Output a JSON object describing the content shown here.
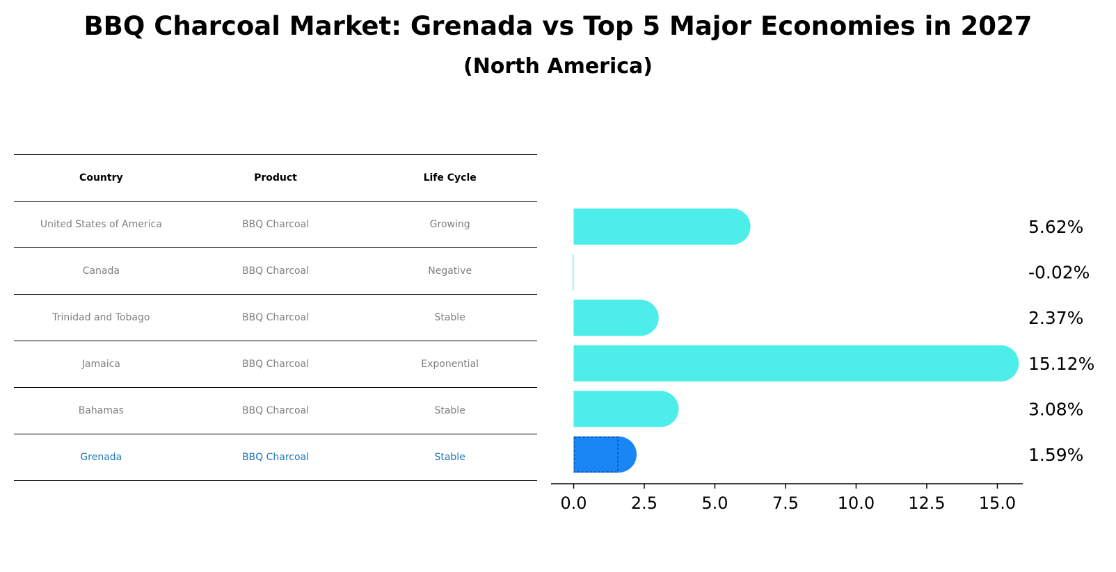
{
  "title": "BBQ Charcoal Market: Grenada vs Top 5 Major Economies in 2027",
  "subtitle": "(North America)",
  "table": {
    "headers": [
      "Country",
      "Product",
      "Life Cycle"
    ],
    "rows": [
      [
        "United States of America",
        "BBQ Charcoal",
        "Growing"
      ],
      [
        "Canada",
        "BBQ Charcoal",
        "Negative"
      ],
      [
        "Trinidad and Tobago",
        "BBQ Charcoal",
        "Stable"
      ],
      [
        "Jamaica",
        "BBQ Charcoal",
        "Exponential"
      ],
      [
        "Bahamas",
        "BBQ Charcoal",
        "Stable"
      ],
      [
        "Grenada",
        "BBQ Charcoal",
        "Stable"
      ]
    ],
    "highlight_row": 5
  },
  "colors": {
    "bar": "#4deeea",
    "highlight_bar": "#1a85f5",
    "highlight_text": "#1f77b4",
    "muted_text": "#7f7f7f"
  },
  "chart_data": {
    "type": "bar",
    "orientation": "horizontal",
    "categories": [
      "United States of America",
      "Canada",
      "Trinidad and Tobago",
      "Jamaica",
      "Bahamas",
      "Grenada"
    ],
    "values": [
      5.62,
      -0.02,
      2.37,
      15.12,
      3.08,
      1.59
    ],
    "value_labels": [
      "5.62%",
      "-0.02%",
      "2.37%",
      "15.12%",
      "3.08%",
      "1.59%"
    ],
    "highlight": "Grenada",
    "xlim": [
      -0.8,
      15.9
    ],
    "xticks": [
      0.0,
      2.5,
      5.0,
      7.5,
      10.0,
      12.5,
      15.0
    ],
    "xtick_labels": [
      "0.0",
      "2.5",
      "5.0",
      "7.5",
      "10.0",
      "12.5",
      "15.0"
    ],
    "grid": false,
    "legend": "none"
  }
}
